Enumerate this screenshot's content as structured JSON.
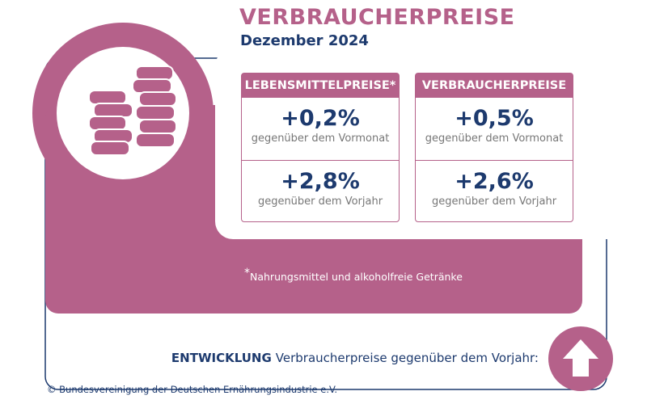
{
  "header": {
    "title": "VERBRAUCHERPREISE",
    "subtitle": "Dezember 2024"
  },
  "panels": [
    {
      "title": "LEBENSMITTELPREISE*",
      "rows": [
        {
          "value": "+0,2%",
          "label": "gegenüber dem Vormonat"
        },
        {
          "value": "+2,8%",
          "label": "gegenüber dem Vorjahr"
        }
      ]
    },
    {
      "title": "VERBRAUCHERPREISE",
      "rows": [
        {
          "value": "+0,5%",
          "label": "gegenüber dem Vormonat"
        },
        {
          "value": "+2,6%",
          "label": "gegenüber dem Vorjahr"
        }
      ]
    }
  ],
  "footnote": {
    "marker": "*",
    "text": "Nahrungsmittel und alkoholfreie Getränke"
  },
  "trend": {
    "label": "ENTWICKLUNG",
    "text": "Verbraucherpreise gegenüber dem Vorjahr:"
  },
  "copyright": "© Bundesvereinigung der Deutschen Ernährungsindustrie e.V."
}
